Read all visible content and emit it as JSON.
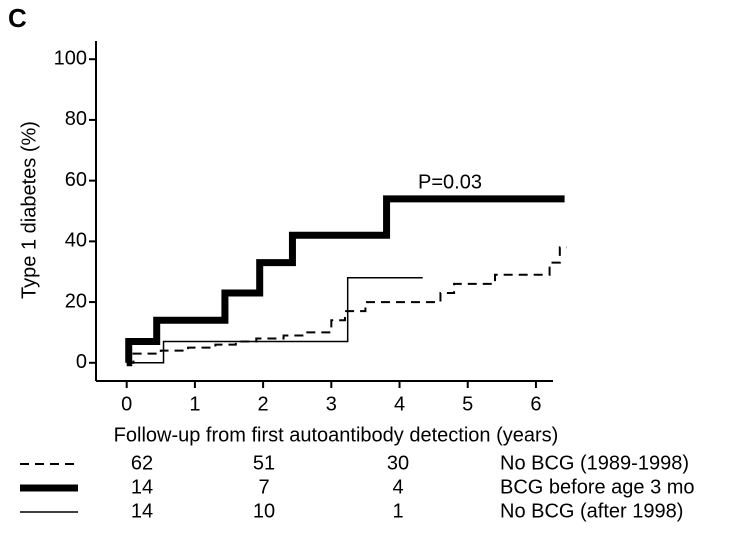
{
  "chart_data": {
    "type": "step",
    "panel_label": "C",
    "annotation": "P=0.03",
    "xlabel": "Follow-up from first autoantibody detection (years)",
    "ylabel": "Type 1 diabetes (%)",
    "xlim": [
      -0.45,
      6.25
    ],
    "xticks": [
      0,
      1,
      2,
      3,
      4,
      5,
      6
    ],
    "ylim": [
      -6,
      106
    ],
    "yticks": [
      0,
      20,
      40,
      60,
      80,
      100
    ],
    "grid": false,
    "series": [
      {
        "name": "No BCG (1989-1998)",
        "color": "#000000",
        "style": "dashed",
        "x": [
          0,
          0.1,
          0.5,
          0.9,
          1.3,
          1.6,
          1.9,
          2.3,
          2.6,
          3.0,
          3.2,
          3.5,
          4.6,
          4.8,
          5.4,
          6.2,
          6.35,
          6.45
        ],
        "values": [
          0,
          3,
          4,
          5,
          6,
          7,
          8,
          9,
          10,
          14,
          17,
          20,
          23,
          26,
          29,
          33,
          38,
          38
        ],
        "at_risk": [
          62,
          51,
          30
        ]
      },
      {
        "name": "BCG before age 3 mo",
        "color": "#000000",
        "style": "thick",
        "x": [
          0,
          0.03,
          0.44,
          1.44,
          1.95,
          2.43,
          3.81,
          6.42
        ],
        "values": [
          0,
          7,
          14,
          23,
          33,
          42,
          54,
          54
        ],
        "at_risk": [
          14,
          7,
          4
        ]
      },
      {
        "name": "No BCG (after 1998)",
        "color": "#000000",
        "style": "thin",
        "x": [
          0,
          0.54,
          3.24,
          4.34
        ],
        "values": [
          0,
          7,
          28,
          28
        ],
        "at_risk": [
          14,
          10,
          1
        ]
      }
    ]
  }
}
